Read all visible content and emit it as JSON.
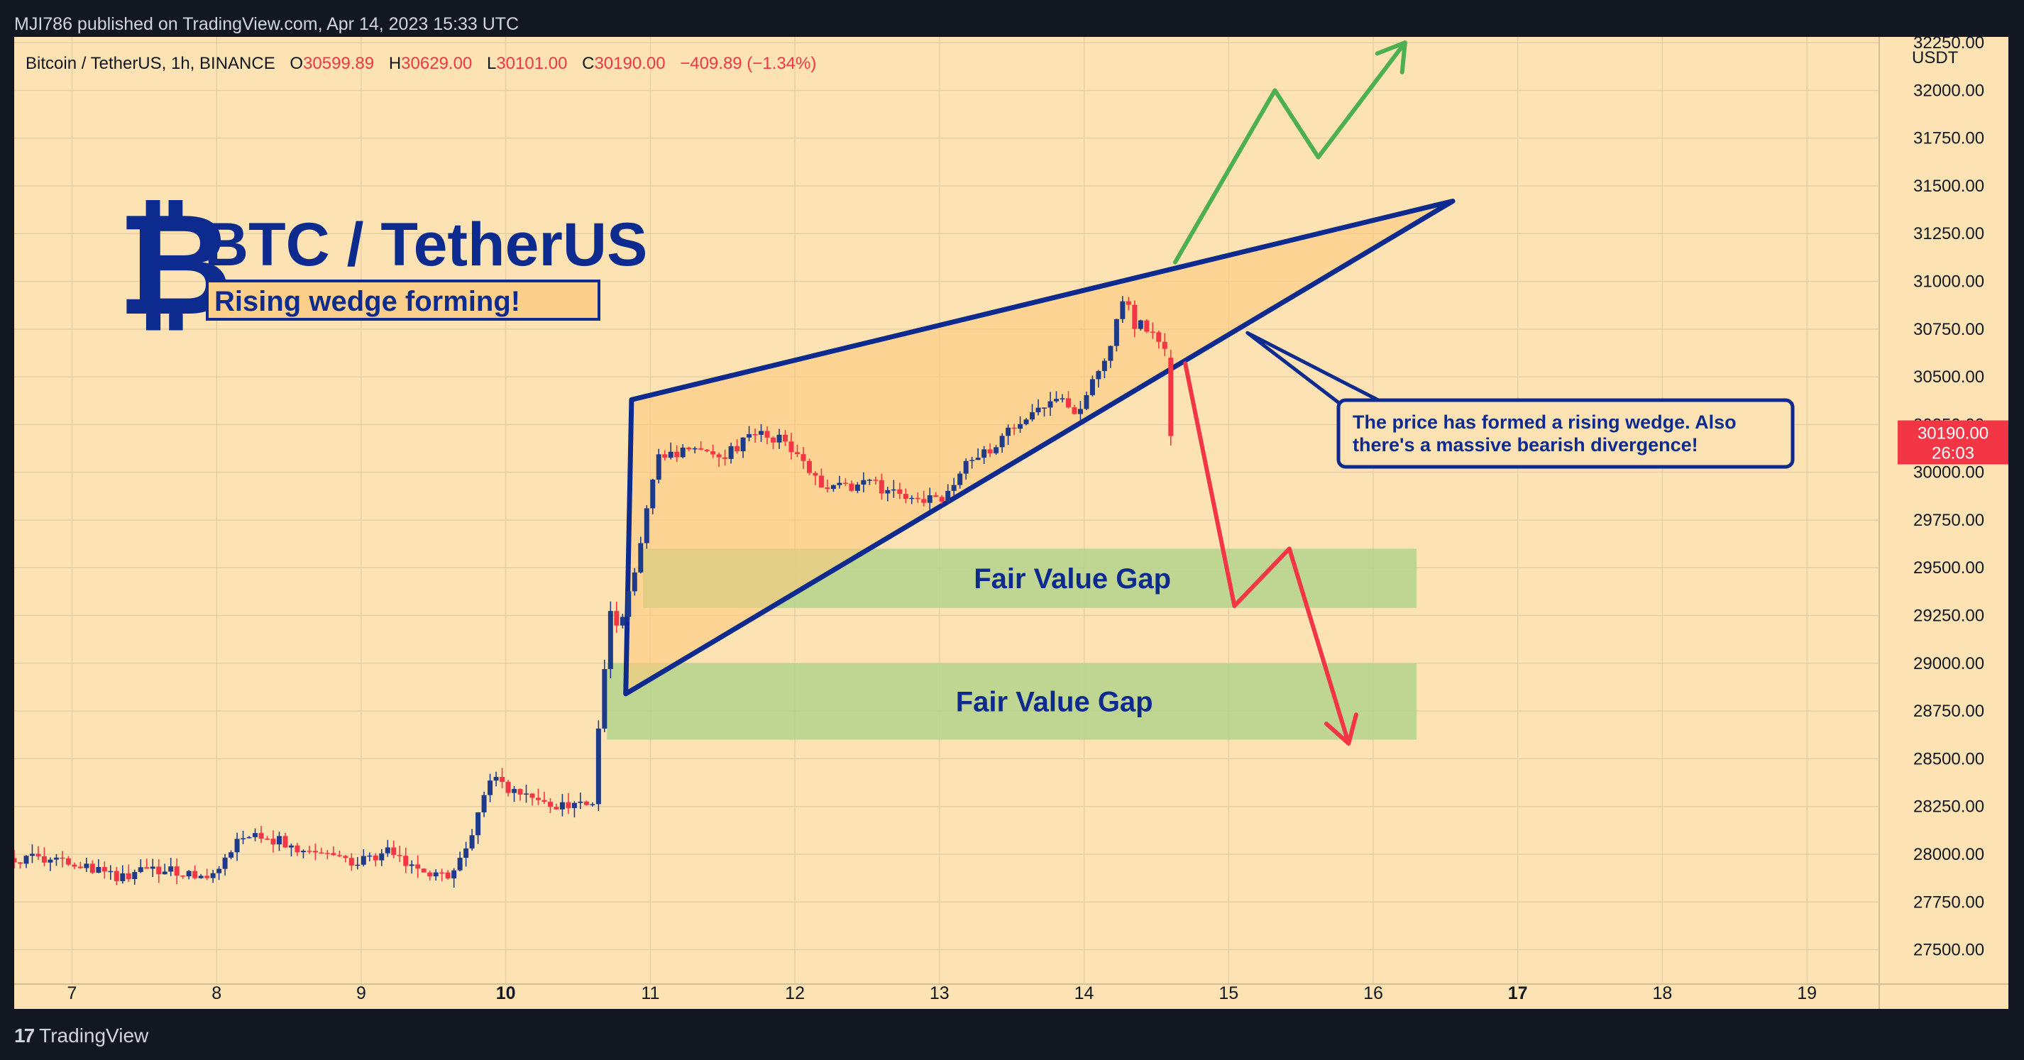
{
  "header": {
    "published_text": "MJI786 published on TradingView.com, Apr 14, 2023 15:33 UTC"
  },
  "footer": {
    "brand": "TradingView",
    "brand_mark": "17"
  },
  "ohlc_bar": {
    "symbol": "Bitcoin / TetherUS, 1h, BINANCE",
    "o_label": "O",
    "o_value": "30599.89",
    "h_label": "H",
    "h_value": "30629.00",
    "l_label": "L",
    "l_value": "30101.00",
    "c_label": "C",
    "c_value": "30190.00",
    "change": "−409.89 (−1.34%)"
  },
  "overlay": {
    "title": "BTC / TetherUS",
    "subtitle": "Rising wedge forming!",
    "logo_glyph": "₿",
    "callout": [
      "The price has formed a rising wedge. Also",
      "there's a massive bearish divergence!"
    ],
    "fvg_upper": "Fair Value Gap",
    "fvg_lower": "Fair Value Gap"
  },
  "price_tag": {
    "price": "30190.00",
    "countdown": "26:03"
  },
  "colors": {
    "background": "#fde3b3",
    "page": "#131722",
    "up": "#1e3a8a",
    "down": "#f23645",
    "wedge": "#0d2a8f",
    "wedge_fill": "#ffc97a",
    "fvg": "#b4d28c",
    "bull_arrow": "#4caf50",
    "bear_arrow": "#f23645",
    "tag": "#f23645"
  },
  "chart_data": {
    "type": "candlestick",
    "x_unit": "day (April 2023)",
    "xlim": [
      6.6,
      19.5
    ],
    "ylim": [
      27320,
      32280
    ],
    "y_axis_label": "USDT",
    "y_ticks": [
      27500,
      27750,
      28000,
      28250,
      28500,
      28750,
      29000,
      29250,
      29500,
      29750,
      30000,
      30250,
      30500,
      30750,
      31000,
      31250,
      31500,
      31750,
      32000,
      32250
    ],
    "y_tick_labels": [
      "27500.00",
      "27750.00",
      "28000.00",
      "28250.00",
      "28500.00",
      "28750.00",
      "29000.00",
      "29250.00",
      "29500.00",
      "29750.00",
      "30000.00",
      "30250.00",
      "30500.00",
      "30750.00",
      "31000.00",
      "31250.00",
      "31500.00",
      "31750.00",
      "32000.00",
      "32250.00"
    ],
    "x_ticks": [
      7,
      8,
      9,
      10,
      11,
      12,
      13,
      14,
      15,
      16,
      17,
      18,
      19
    ],
    "x_tick_labels": [
      "7",
      "8",
      "9",
      "10",
      "11",
      "12",
      "13",
      "14",
      "15",
      "16",
      "17",
      "18",
      "19"
    ],
    "x_bold_ticks": [
      "10",
      "17"
    ],
    "price_path": [
      [
        6.6,
        27980
      ],
      [
        7.0,
        27970
      ],
      [
        7.3,
        27880
      ],
      [
        7.6,
        27920
      ],
      [
        8.0,
        27890
      ],
      [
        8.2,
        28120
      ],
      [
        8.5,
        28050
      ],
      [
        8.8,
        27980
      ],
      [
        9.0,
        27960
      ],
      [
        9.2,
        28020
      ],
      [
        9.4,
        27900
      ],
      [
        9.6,
        27870
      ],
      [
        9.75,
        28050
      ],
      [
        9.88,
        28400
      ],
      [
        10.1,
        28320
      ],
      [
        10.3,
        28250
      ],
      [
        10.5,
        28280
      ],
      [
        10.6,
        28250
      ],
      [
        10.66,
        28800
      ],
      [
        10.72,
        29300
      ],
      [
        10.78,
        29150
      ],
      [
        10.85,
        29350
      ],
      [
        10.95,
        29700
      ],
      [
        11.05,
        30100
      ],
      [
        11.3,
        30100
      ],
      [
        11.5,
        30080
      ],
      [
        11.7,
        30200
      ],
      [
        11.9,
        30180
      ],
      [
        12.05,
        30050
      ],
      [
        12.2,
        29900
      ],
      [
        12.5,
        29950
      ],
      [
        12.7,
        29880
      ],
      [
        12.85,
        29850
      ],
      [
        13.0,
        29860
      ],
      [
        13.2,
        30050
      ],
      [
        13.4,
        30150
      ],
      [
        13.6,
        30300
      ],
      [
        13.8,
        30400
      ],
      [
        13.95,
        30320
      ],
      [
        14.1,
        30520
      ],
      [
        14.2,
        30700
      ],
      [
        14.27,
        30920
      ],
      [
        14.35,
        30780
      ],
      [
        14.5,
        30740
      ],
      [
        14.58,
        30600
      ],
      [
        14.62,
        30190
      ]
    ],
    "last_price": 30190.0,
    "annotations": {
      "rising_wedge": {
        "apexes": [
          [
            10.83,
            28840
          ],
          [
            10.87,
            30380
          ],
          [
            16.55,
            31420
          ]
        ]
      },
      "fair_value_gap_upper": {
        "x": [
          10.95,
          16.3
        ],
        "y": [
          29290,
          29600
        ]
      },
      "fair_value_gap_lower": {
        "x": [
          10.7,
          16.3
        ],
        "y": [
          28600,
          29000
        ]
      },
      "bull_scenario": [
        [
          14.63,
          31100
        ],
        [
          15.32,
          32000
        ],
        [
          15.62,
          31650
        ],
        [
          16.22,
          32250
        ]
      ],
      "bear_scenario": [
        [
          14.7,
          30570
        ],
        [
          15.04,
          29300
        ],
        [
          15.42,
          29600
        ],
        [
          15.83,
          28580
        ]
      ],
      "callout_anchor": [
        15.13,
        30730
      ]
    }
  }
}
